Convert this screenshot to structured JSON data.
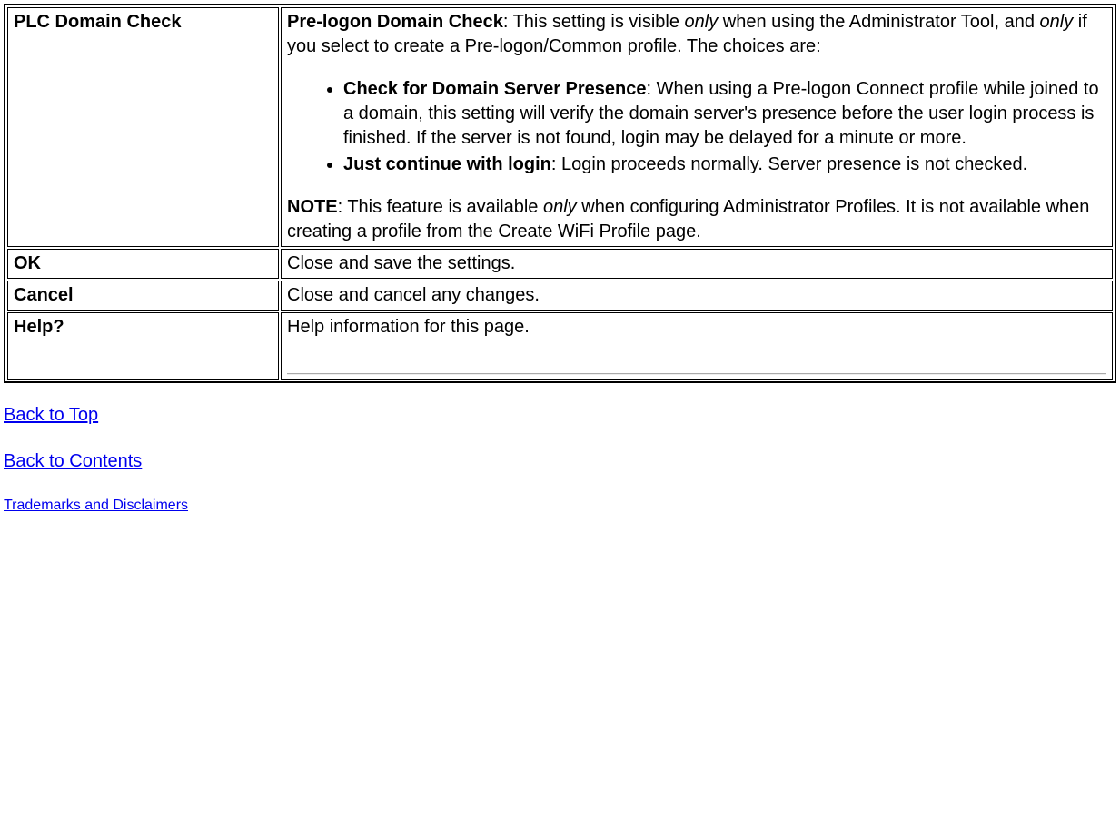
{
  "rows": {
    "plc": {
      "label": "PLC Domain Check",
      "intro_bold": "Pre-logon Domain Check",
      "intro_rest_1": ": This setting is visible ",
      "intro_only1": "only",
      "intro_rest_2": " when using the Administrator Tool, and ",
      "intro_only2": "only",
      "intro_rest_3": " if you select to create a Pre-logon/Common profile. The choices are:",
      "bullet1_bold": "Check for Domain Server Presence",
      "bullet1_rest": ": When using a Pre-logon Connect profile while joined to a domain, this setting will verify the domain server's presence before the user login process is finished. If the server is not found, login may be delayed for a minute or more.",
      "bullet2_bold": "Just continue with login",
      "bullet2_rest": ": Login proceeds normally. Server presence is not checked.",
      "note_bold": "NOTE",
      "note_rest_1": ": This feature is available ",
      "note_only": "only",
      "note_rest_2": " when configuring Administrator Profiles. It is not available when creating a profile from the Create WiFi Profile page."
    },
    "ok": {
      "label": "OK",
      "desc": "Close and save the settings."
    },
    "cancel": {
      "label": "Cancel",
      "desc": "Close and cancel any changes."
    },
    "help": {
      "label": "Help?",
      "desc": "Help information for this page."
    }
  },
  "links": {
    "back_to_top": "Back to Top",
    "back_to_contents": "Back to Contents",
    "trademarks": "Trademarks and Disclaimers"
  }
}
